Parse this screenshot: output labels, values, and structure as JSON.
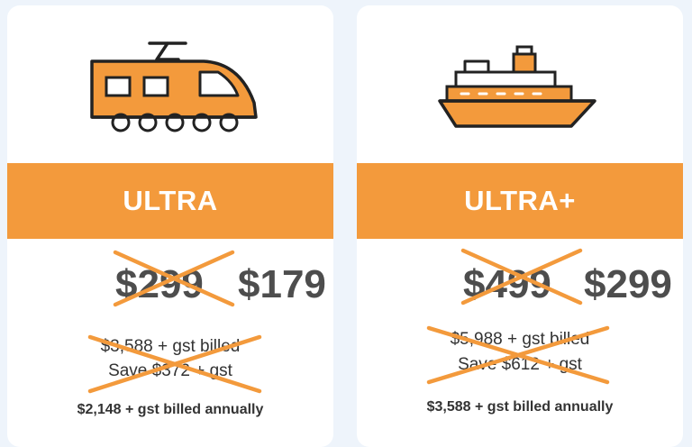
{
  "plans": [
    {
      "name": "ULTRA",
      "icon": "train-icon",
      "old_price": "$299",
      "new_price": "$179",
      "old_billed": "$3,588 + gst billed",
      "old_save": "Save $372 + gst",
      "annual": "$2,148 + gst billed annually"
    },
    {
      "name": "ULTRA+",
      "icon": "ship-icon",
      "old_price": "$499",
      "new_price": "$299",
      "old_billed": "$5,988 + gst billed",
      "old_save": "Save $612 + gst",
      "annual": "$3,588 + gst billed annually"
    }
  ],
  "colors": {
    "accent": "#f39a3c",
    "outline": "#222222",
    "text": "#333333",
    "background": "#eef4fb"
  }
}
